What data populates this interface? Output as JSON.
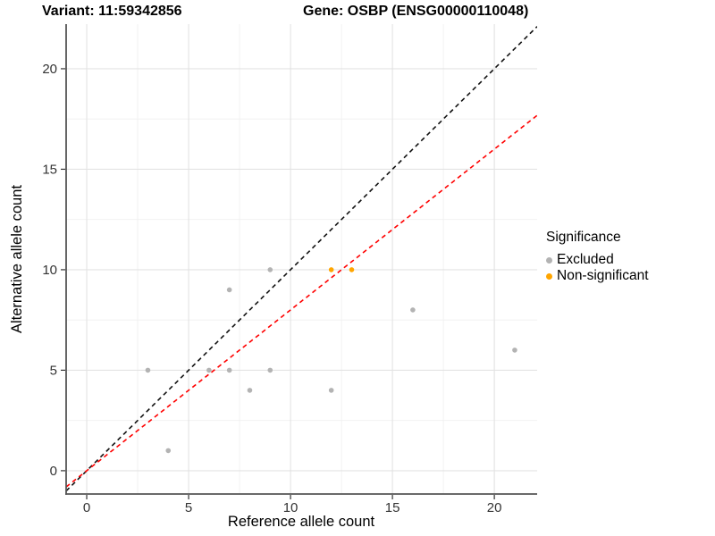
{
  "title": {
    "left": "Variant: 11:59342856",
    "right": "Gene: OSBP (ENSG00000110048)"
  },
  "chart_data": {
    "type": "scatter",
    "xlabel": "Reference allele count",
    "ylabel": "Alternative allele count",
    "x_ticks": [
      0,
      5,
      10,
      15,
      20
    ],
    "y_ticks": [
      0,
      5,
      10,
      15,
      20
    ],
    "x_minor": [
      2.5,
      7.5,
      12.5,
      17.5,
      22.5
    ],
    "y_minor": [
      2.5,
      7.5,
      12.5,
      17.5,
      22.5
    ],
    "x_range": [
      -1.01,
      22.1
    ],
    "y_range": [
      -1.16,
      22.22
    ],
    "grid": true,
    "legend_position": "right",
    "series": [
      {
        "name": "Excluded",
        "color": "#B3B3B3",
        "points": [
          [
            3,
            5
          ],
          [
            4,
            1
          ],
          [
            6,
            5
          ],
          [
            7,
            5
          ],
          [
            7,
            9
          ],
          [
            8,
            4
          ],
          [
            9,
            5
          ],
          [
            9,
            10
          ],
          [
            12,
            4
          ],
          [
            16,
            8
          ],
          [
            21,
            6
          ]
        ]
      },
      {
        "name": "Non-significant",
        "color": "#FFA500",
        "points": [
          [
            12,
            10
          ],
          [
            13,
            10
          ]
        ]
      }
    ],
    "lines": [
      {
        "name": "identity-line",
        "color": "#111111",
        "slope": 1,
        "intercept": 0,
        "style": "dashed"
      },
      {
        "name": "regression-line",
        "color": "#FF0000",
        "slope": 0.8,
        "intercept": 0,
        "style": "dashed"
      }
    ],
    "legend": {
      "title": "Significance",
      "items": [
        {
          "label": "Excluded",
          "color": "#B3B3B3"
        },
        {
          "label": "Non-significant",
          "color": "#FFA500"
        }
      ]
    }
  }
}
